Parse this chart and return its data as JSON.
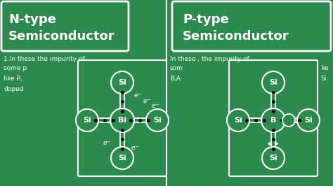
{
  "bg_color": "#2d8a4e",
  "left_title_line1": "N-type",
  "left_title_line2": "Semiconductor",
  "right_title_line1": "P-type",
  "right_title_line2": "Semiconductor",
  "left_text1": "1.In these the impurity of",
  "left_text2": "some p",
  "left_text3": "like P,",
  "left_text4": "doped",
  "right_text1": "In these , the impurity of",
  "right_text2": "som",
  "right_text3": "B,A",
  "right_text4_right": "ke",
  "right_text5_right": "Si.",
  "left_center_atom": "Bi",
  "right_center_atom": "B",
  "si_label": "Si",
  "white": "#ffffff",
  "black": "#000000"
}
